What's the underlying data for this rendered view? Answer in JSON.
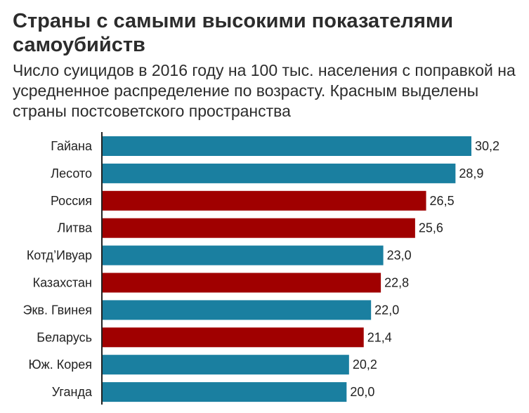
{
  "colors": {
    "default": "#1a7fa0",
    "highlight": "#a00000",
    "axis": "#222222"
  },
  "chart_data": {
    "type": "bar",
    "orientation": "horizontal",
    "title": "Страны с самыми высокими показателями самоубийств",
    "subtitle": "Число суицидов в 2016 году на 100 тыс. населения с поправкой на усредненное распределение по возрасту. Красным выделены страны постсоветского пространства",
    "categories": [
      "Гайана",
      "Лесото",
      "Россия",
      "Литва",
      "Котд’Ивуар",
      "Казахстан",
      "Экв. Гвинея",
      "Беларусь",
      "Юж. Корея",
      "Уганда"
    ],
    "values": [
      30.2,
      28.9,
      26.5,
      25.6,
      23.0,
      22.8,
      22.0,
      21.4,
      20.2,
      20.0
    ],
    "value_labels": [
      "30,2",
      "28,9",
      "26,5",
      "25,6",
      "23,0",
      "22,8",
      "22,0",
      "21,4",
      "20,2",
      "20,0"
    ],
    "highlighted": [
      false,
      false,
      true,
      true,
      false,
      true,
      false,
      true,
      false,
      false
    ],
    "xlim": [
      0,
      30.2
    ],
    "grid": false,
    "legend": "none"
  }
}
